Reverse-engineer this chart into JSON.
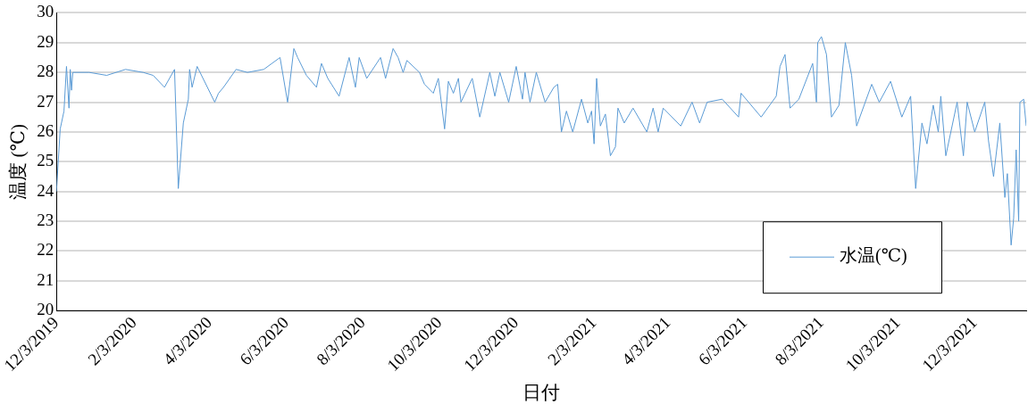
{
  "chart_data": {
    "type": "line",
    "xlabel": "日付",
    "ylabel": "温度 (℃)",
    "legend": "bottom right",
    "grid": "y",
    "marker": "none",
    "line_style": "solid",
    "xlim": [
      "2019-12-03",
      "2022-01-13"
    ],
    "xticks": [
      {
        "value": "2019-12-03",
        "label": "12/3/2019"
      },
      {
        "value": "2020-02-03",
        "label": "2/3/2020"
      },
      {
        "value": "2020-04-03",
        "label": "4/3/2020"
      },
      {
        "value": "2020-06-03",
        "label": "6/3/2020"
      },
      {
        "value": "2020-08-03",
        "label": "8/3/2020"
      },
      {
        "value": "2020-10-03",
        "label": "10/3/2020"
      },
      {
        "value": "2020-12-03",
        "label": "12/3/2020"
      },
      {
        "value": "2021-02-03",
        "label": "2/3/2021"
      },
      {
        "value": "2021-04-03",
        "label": "4/3/2021"
      },
      {
        "value": "2021-06-03",
        "label": "6/3/2021"
      },
      {
        "value": "2021-08-03",
        "label": "8/3/2021"
      },
      {
        "value": "2021-10-03",
        "label": "10/3/2021"
      },
      {
        "value": "2021-12-03",
        "label": "12/3/2021"
      }
    ],
    "ylim": [
      20,
      30
    ],
    "yticks": [
      20,
      21,
      22,
      23,
      24,
      25,
      26,
      27,
      28,
      29,
      30
    ],
    "x": [
      "2019-12-03",
      "2019-12-06",
      "2019-12-09",
      "2019-12-11",
      "2019-12-13",
      "2019-12-14",
      "2019-12-15",
      "2019-12-16",
      "2019-12-29",
      "2020-01-12",
      "2020-01-27",
      "2020-02-10",
      "2020-02-18",
      "2020-02-27",
      "2020-03-06",
      "2020-03-09",
      "2020-03-13",
      "2020-03-17",
      "2020-03-18",
      "2020-03-20",
      "2020-03-24",
      "2020-04-07",
      "2020-04-10",
      "2020-04-14",
      "2020-04-24",
      "2020-05-03",
      "2020-05-16",
      "2020-05-29",
      "2020-06-04",
      "2020-06-09",
      "2020-06-12",
      "2020-06-19",
      "2020-06-27",
      "2020-07-01",
      "2020-07-06",
      "2020-07-15",
      "2020-07-23",
      "2020-07-28",
      "2020-07-31",
      "2020-08-06",
      "2020-08-17",
      "2020-08-21",
      "2020-08-27",
      "2020-08-31",
      "2020-09-04",
      "2020-09-07",
      "2020-09-17",
      "2020-09-21",
      "2020-09-28",
      "2020-10-02",
      "2020-10-07",
      "2020-10-10",
      "2020-10-14",
      "2020-10-18",
      "2020-10-20",
      "2020-10-29",
      "2020-11-04",
      "2020-11-12",
      "2020-11-16",
      "2020-11-20",
      "2020-11-27",
      "2020-12-03",
      "2020-12-08",
      "2020-12-10",
      "2020-12-14",
      "2020-12-19",
      "2020-12-26",
      "2021-01-02",
      "2021-01-05",
      "2021-01-08",
      "2021-01-12",
      "2021-01-17",
      "2021-01-24",
      "2021-01-29",
      "2021-02-01",
      "2021-02-03",
      "2021-02-05",
      "2021-02-08",
      "2021-02-12",
      "2021-02-16",
      "2021-02-20",
      "2021-02-22",
      "2021-02-27",
      "2021-03-06",
      "2021-03-17",
      "2021-03-22",
      "2021-03-26",
      "2021-03-30",
      "2021-04-13",
      "2021-04-22",
      "2021-04-28",
      "2021-05-04",
      "2021-05-16",
      "2021-05-29",
      "2021-05-31",
      "2021-06-16",
      "2021-06-28",
      "2021-07-01",
      "2021-07-05",
      "2021-07-09",
      "2021-07-16",
      "2021-07-27",
      "2021-07-30",
      "2021-07-31",
      "2021-08-03",
      "2021-08-07",
      "2021-08-11",
      "2021-08-17",
      "2021-08-22",
      "2021-08-27",
      "2021-08-31",
      "2021-09-12",
      "2021-09-18",
      "2021-09-27",
      "2021-10-06",
      "2021-10-13",
      "2021-10-17",
      "2021-10-22",
      "2021-10-26",
      "2021-10-31",
      "2021-11-04",
      "2021-11-06",
      "2021-11-10",
      "2021-11-19",
      "2021-11-24",
      "2021-11-27",
      "2021-12-03",
      "2021-12-11",
      "2021-12-14",
      "2021-12-18",
      "2021-12-23",
      "2021-12-27",
      "2021-12-29",
      "2022-01-01",
      "2022-01-03",
      "2022-01-05",
      "2022-01-07",
      "2022-01-08",
      "2022-01-11",
      "2022-01-13"
    ],
    "series": [
      {
        "name": "水温(℃)",
        "color": "#5b9bd5",
        "values": [
          24.0,
          26.1,
          26.7,
          28.2,
          26.8,
          28.1,
          27.4,
          28.0,
          28.0,
          27.9,
          28.1,
          28.0,
          27.9,
          27.5,
          28.1,
          24.1,
          26.3,
          27.1,
          28.1,
          27.5,
          28.2,
          27.0,
          27.3,
          27.5,
          28.1,
          28.0,
          28.1,
          28.5,
          27.0,
          28.8,
          28.5,
          27.9,
          27.5,
          28.3,
          27.8,
          27.2,
          28.5,
          27.5,
          28.5,
          27.8,
          28.5,
          27.8,
          28.8,
          28.5,
          28.0,
          28.4,
          28.0,
          27.6,
          27.3,
          27.8,
          26.1,
          27.7,
          27.3,
          27.8,
          27.0,
          27.8,
          26.5,
          28.0,
          27.2,
          28.0,
          27.0,
          28.2,
          27.1,
          28.0,
          27.0,
          28.0,
          27.0,
          27.5,
          27.6,
          26.0,
          26.7,
          26.0,
          27.1,
          26.3,
          26.7,
          25.6,
          27.8,
          26.2,
          26.6,
          25.2,
          25.5,
          26.8,
          26.3,
          26.8,
          26.0,
          26.8,
          26.0,
          26.8,
          26.2,
          27.0,
          26.3,
          27.0,
          27.1,
          26.5,
          27.3,
          26.5,
          27.2,
          28.2,
          28.6,
          26.8,
          27.1,
          28.3,
          27.0,
          29.0,
          29.2,
          28.6,
          26.5,
          26.9,
          29.0,
          27.9,
          26.2,
          27.6,
          27.0,
          27.7,
          26.5,
          27.2,
          24.1,
          26.3,
          25.6,
          26.9,
          26.0,
          27.2,
          25.2,
          27.0,
          25.2,
          27.0,
          26.0,
          27.0,
          25.7,
          24.5,
          26.3,
          23.8,
          24.6,
          22.2,
          23.1,
          25.4,
          23.0,
          27.0,
          27.1,
          26.2
        ]
      }
    ]
  }
}
